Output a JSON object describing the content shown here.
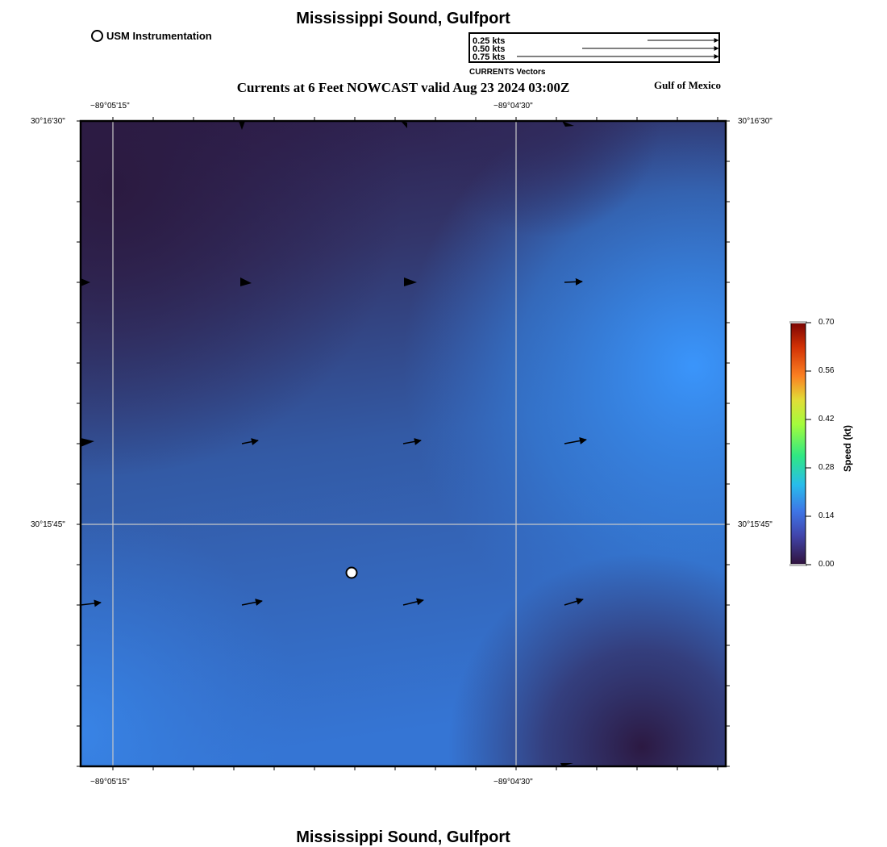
{
  "header": {
    "title": "Mississippi Sound, Gulfport",
    "subtitle": "Currents at 6 Feet NOWCAST valid Aug 23 2024 03:00Z",
    "region": "Gulf of Mexico",
    "footer_title": "Mississippi Sound, Gulfport"
  },
  "legend": {
    "station_label": "USM Instrumentation",
    "vector_labels": [
      "0.25 kts",
      "0.50 kts",
      "0.75 kts"
    ],
    "vector_caption": "CURRENTS Vectors"
  },
  "axes": {
    "lon_left": "−89°05'15\"",
    "lon_right": "−89°04'30\"",
    "lat_top": "30°16'30\"",
    "lat_mid": "30°15'45\""
  },
  "colorbar": {
    "title": "Speed (kt)",
    "ticks": [
      "0.70",
      "0.56",
      "0.42",
      "0.28",
      "0.14",
      "0.00"
    ],
    "colors": [
      "#7a0403",
      "#e8541a",
      "#d3dc3b",
      "#2fe883",
      "#3aa3fc",
      "#30123b"
    ]
  },
  "map": {
    "low_color": "#2e1f4a",
    "high_color": "#3a8ff0"
  }
}
